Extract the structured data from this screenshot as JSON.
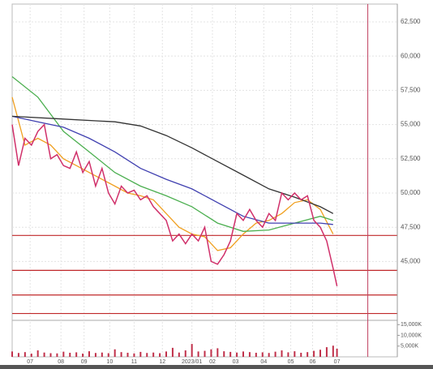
{
  "chart_data": {
    "type": "line",
    "xlim": [
      0,
      300
    ],
    "ylim": [
      40700,
      63800
    ],
    "yticks": [
      {
        "value": 45000,
        "label": "45,000"
      },
      {
        "value": 47500,
        "label": "47,500"
      },
      {
        "value": 50000,
        "label": "50,000"
      },
      {
        "value": 52500,
        "label": "52,500"
      },
      {
        "value": 55000,
        "label": "55,000"
      },
      {
        "value": 57500,
        "label": "57,500"
      },
      {
        "value": 60000,
        "label": "60,000"
      },
      {
        "value": 62500,
        "label": "62,500"
      }
    ],
    "xticks": [
      {
        "value": 14,
        "label": "07"
      },
      {
        "value": 38,
        "label": "08"
      },
      {
        "value": 56,
        "label": "09"
      },
      {
        "value": 76,
        "label": "10"
      },
      {
        "value": 95,
        "label": "11"
      },
      {
        "value": 117,
        "label": "12"
      },
      {
        "value": 140,
        "label": "2023/01"
      },
      {
        "value": 156,
        "label": "02"
      },
      {
        "value": 174,
        "label": "03"
      },
      {
        "value": 196,
        "label": "04"
      },
      {
        "value": 217,
        "label": "05"
      },
      {
        "value": 234,
        "label": "06"
      },
      {
        "value": 253,
        "label": "07"
      }
    ],
    "grid": true,
    "x": [
      0,
      5,
      10,
      15,
      20,
      25,
      30,
      35,
      40,
      45,
      50,
      55,
      60,
      65,
      70,
      75,
      80,
      85,
      90,
      95,
      100,
      105,
      110,
      115,
      120,
      125,
      130,
      135,
      140,
      145,
      150,
      155,
      160,
      165,
      170,
      175,
      180,
      185,
      190,
      195,
      200,
      205,
      210,
      215,
      220,
      225,
      230,
      235,
      240,
      245,
      250,
      253
    ],
    "price": {
      "color": "#d0306a",
      "values": [
        55000,
        52000,
        54000,
        53500,
        54500,
        55000,
        52500,
        52800,
        52000,
        51800,
        53000,
        51500,
        52300,
        50500,
        51800,
        50000,
        49200,
        50500,
        50000,
        50200,
        49500,
        49800,
        49000,
        48500,
        48000,
        46500,
        47000,
        46300,
        47000,
        46500,
        47500,
        45000,
        44800,
        45500,
        46500,
        48500,
        48000,
        48800,
        48000,
        47500,
        48500,
        48000,
        50000,
        49500,
        50000,
        49500,
        49800,
        48000,
        47500,
        46500,
        44500,
        43200
      ]
    },
    "series": [
      {
        "color": "#f0a020",
        "x": [
          0,
          10,
          20,
          30,
          40,
          50,
          60,
          70,
          80,
          90,
          100,
          110,
          120,
          130,
          140,
          150,
          160,
          170,
          180,
          190,
          200,
          210,
          220,
          230,
          240,
          250
        ],
        "values": [
          57000,
          53500,
          54000,
          53500,
          52500,
          52000,
          51500,
          51000,
          50500,
          50000,
          49800,
          49500,
          48500,
          47500,
          47000,
          46800,
          45800,
          46000,
          47000,
          47800,
          48000,
          48500,
          49300,
          49500,
          48800,
          47000
        ]
      },
      {
        "color": "#4caf50",
        "x": [
          0,
          20,
          40,
          60,
          80,
          100,
          120,
          140,
          160,
          180,
          200,
          220,
          240,
          250
        ],
        "values": [
          58500,
          57000,
          54500,
          53000,
          51500,
          50500,
          49800,
          49000,
          47800,
          47200,
          47300,
          47800,
          48300,
          48000
        ]
      },
      {
        "color": "#4040b0",
        "x": [
          0,
          20,
          40,
          60,
          80,
          100,
          120,
          140,
          160,
          180,
          200,
          220,
          240,
          250
        ],
        "values": [
          55600,
          55200,
          54800,
          54000,
          53000,
          51800,
          51000,
          50300,
          49300,
          48300,
          47800,
          47800,
          47800,
          47700
        ]
      },
      {
        "color": "#333333",
        "x": [
          0,
          40,
          80,
          100,
          120,
          140,
          160,
          180,
          200,
          220,
          240,
          250
        ],
        "values": [
          55600,
          55400,
          55200,
          54900,
          54200,
          53300,
          52300,
          51300,
          50300,
          49700,
          49000,
          48500
        ]
      }
    ],
    "hlines": {
      "color": "#c0282a",
      "values": [
        46900,
        44350,
        42550,
        41200
      ]
    },
    "crosshair": {
      "color": "#c04060",
      "x": 277
    },
    "volume": {
      "color": "#c0304a",
      "vlim": [
        0,
        17000
      ],
      "vticks": [
        {
          "value": 5000,
          "label": "5,000K"
        },
        {
          "value": 10000,
          "label": "10,000K"
        },
        {
          "value": 15000,
          "label": "15,000K"
        }
      ],
      "values": [
        2500,
        1800,
        2200,
        1500,
        3000,
        2000,
        1700,
        1600,
        2400,
        1900,
        2100,
        1500,
        2600,
        1800,
        2000,
        1700,
        3500,
        2200,
        1900,
        1600,
        2300,
        1800,
        2000,
        1700,
        2500,
        4200,
        2000,
        3000,
        6000,
        2500,
        2800,
        3500,
        4000,
        2600,
        2300,
        2000,
        2500,
        2200,
        1900,
        2100,
        1800,
        2400,
        3000,
        2100,
        2600,
        1900,
        2200,
        2800,
        3300,
        4500,
        5200,
        3800
      ]
    }
  }
}
